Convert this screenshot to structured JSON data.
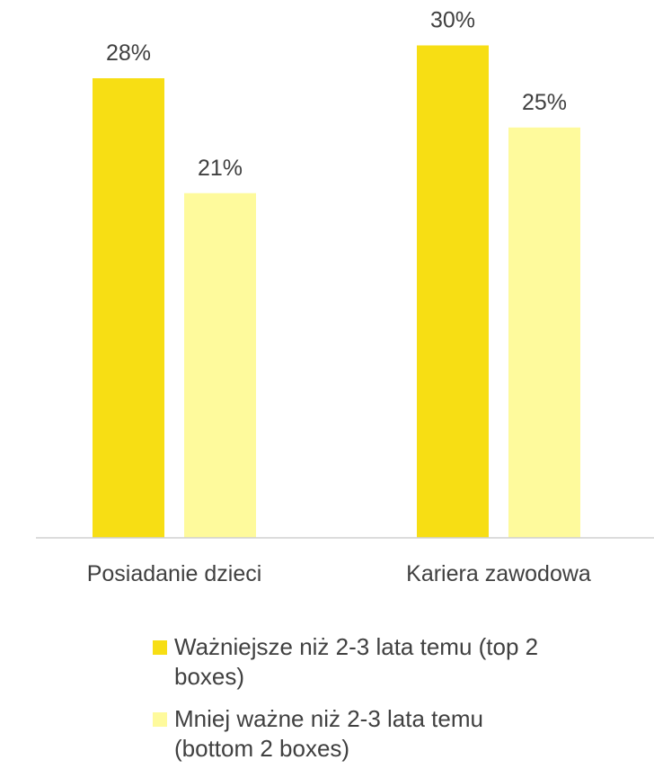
{
  "chart_data": {
    "type": "bar",
    "categories": [
      "Posiadanie dzieci",
      "Kariera zawodowa"
    ],
    "series": [
      {
        "name": "Ważniejsze niż 2-3 lata temu (top 2 boxes)",
        "color": "#f7de14",
        "values": [
          28,
          30
        ],
        "value_labels": [
          "28%",
          "30%"
        ]
      },
      {
        "name": "Mniej ważne niż 2-3 lata temu (bottom 2 boxes)",
        "color": "#fefa9c",
        "values": [
          21,
          25
        ],
        "value_labels": [
          "21%",
          "25%"
        ]
      }
    ],
    "ylim": [
      0,
      32
    ],
    "legend": "bottom"
  }
}
